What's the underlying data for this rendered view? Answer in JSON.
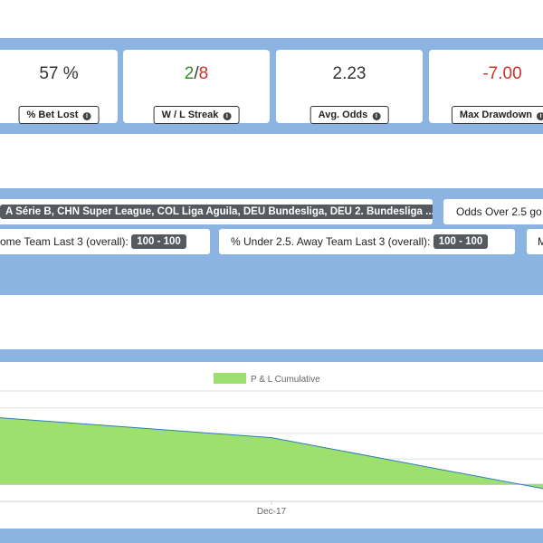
{
  "stats": [
    {
      "value": "57 %",
      "label": "% Bet Lost",
      "value_color": "#333333"
    },
    {
      "streak_win": "2",
      "streak_sep": "/",
      "streak_loss": "8",
      "label": "W / L Streak"
    },
    {
      "value": "2.23",
      "label": "Avg. Odds",
      "value_color": "#333333"
    },
    {
      "value": "-7.00",
      "label": "Max Drawdown",
      "value_color": "#d0312d"
    }
  ],
  "colors": {
    "band": "#8cb4e2",
    "win": "#3a8a2e",
    "loss": "#d0312d",
    "area_fill": "#9ee06e",
    "line": "#2a7fb8"
  },
  "icons": {
    "info": "info-circle-icon",
    "legend": "legend-swatch-icon"
  },
  "filters": {
    "leagues": "A Série B, CHN Super League, COL Liga Aguila, DEU Bundesliga, DEU 2. Bundesliga ...",
    "odds_over": "Odds Over 2.5 go",
    "home_label": "ome Team Last 3 (overall):",
    "home_range": "100 - 100",
    "away_label": "% Under 2.5. Away Team Last 3 (overall):",
    "away_range": "100 - 100",
    "cut_chip": "M"
  },
  "chart_data": {
    "type": "area",
    "series": [
      {
        "name": "P & L Cumulative",
        "values": [
          8.0,
          5.5,
          -0.9
        ]
      }
    ],
    "x_tick_labels": [
      "Dec-17"
    ],
    "legend_position": "top-center",
    "grid": true
  }
}
